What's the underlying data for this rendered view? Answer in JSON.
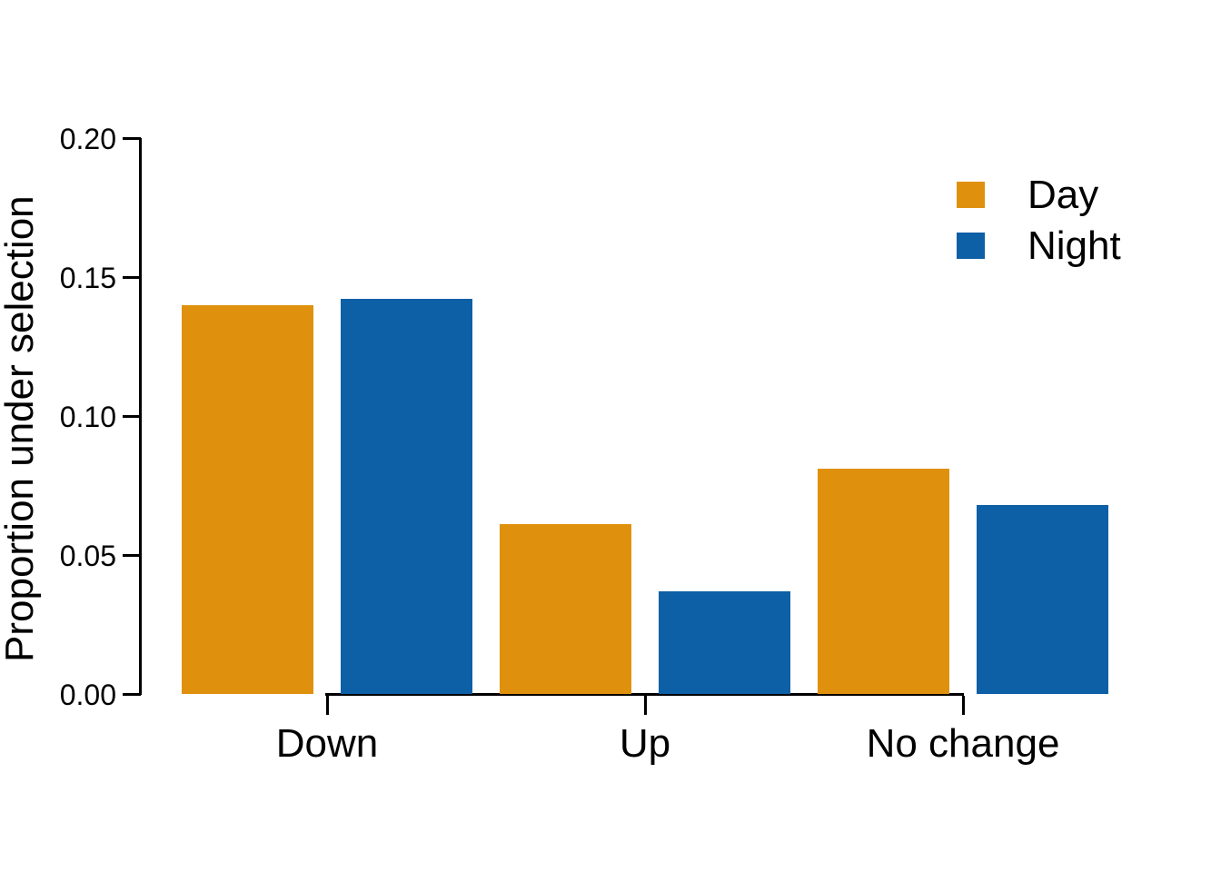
{
  "chart_data": {
    "type": "bar",
    "title": "",
    "xlabel": "",
    "ylabel": "Proportion under selection",
    "categories": [
      "Down",
      "Up",
      "No change"
    ],
    "series": [
      {
        "name": "Day",
        "color": "#DF910D",
        "values": [
          0.14,
          0.061,
          0.081
        ]
      },
      {
        "name": "Night",
        "color": "#0D5FA6",
        "values": [
          0.142,
          0.037,
          0.068
        ]
      }
    ],
    "ylim": [
      0,
      0.2
    ],
    "yticks": [
      {
        "value": 0.0,
        "label": "0.00"
      },
      {
        "value": 0.05,
        "label": "0.05"
      },
      {
        "value": 0.1,
        "label": "0.10"
      },
      {
        "value": 0.15,
        "label": "0.15"
      },
      {
        "value": 0.2,
        "label": "0.20"
      }
    ],
    "grid": false,
    "legend_position": "top-right",
    "colors": {
      "axis": "#000000",
      "text": "#000000",
      "background": "#ffffff"
    }
  }
}
